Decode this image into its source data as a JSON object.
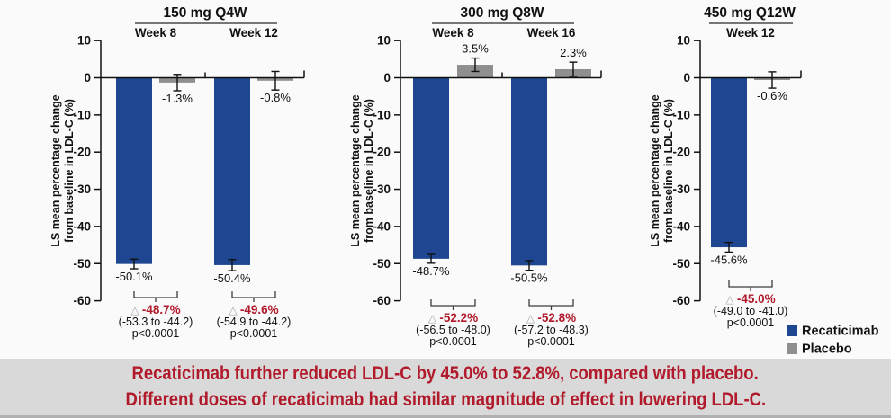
{
  "ylabel_lines": [
    "LS mean percentage change",
    "from baseline in LDL-C (%)"
  ],
  "chart_data": [
    {
      "type": "bar",
      "title": "150 mg Q4W",
      "ylabel": "LS mean percentage change from baseline in LDL-C (%)",
      "ylim": [
        -60,
        10
      ],
      "yticks": [
        10,
        0,
        -10,
        -20,
        -30,
        -40,
        -50,
        -60
      ],
      "series_names": [
        "Recaticimab",
        "Placebo"
      ],
      "groups": [
        {
          "label": "Week 8",
          "recaticimab": {
            "value": -50.1,
            "error": 1.3,
            "display": "-50.1%"
          },
          "placebo": {
            "value": -1.3,
            "error": 2.2,
            "display": "-1.3%"
          },
          "difference": {
            "display": "-48.7%",
            "ci": "(-53.3 to -44.2)",
            "p": "p<0.0001"
          }
        },
        {
          "label": "Week 12",
          "recaticimab": {
            "value": -50.4,
            "error": 1.5,
            "display": "-50.4%"
          },
          "placebo": {
            "value": -0.8,
            "error": 2.5,
            "display": "-0.8%"
          },
          "difference": {
            "display": "-49.6%",
            "ci": "(-54.9 to -44.2)",
            "p": "p<0.0001"
          }
        }
      ]
    },
    {
      "type": "bar",
      "title": "300 mg Q8W",
      "ylabel": "LS mean percentage change from baseline in LDL-C (%)",
      "ylim": [
        -60,
        10
      ],
      "yticks": [
        10,
        0,
        -10,
        -20,
        -30,
        -40,
        -50,
        -60
      ],
      "series_names": [
        "Recaticimab",
        "Placebo"
      ],
      "groups": [
        {
          "label": "Week 8",
          "recaticimab": {
            "value": -48.7,
            "error": 1.2,
            "display": "-48.7%"
          },
          "placebo": {
            "value": 3.5,
            "error": 1.8,
            "display": "3.5%"
          },
          "difference": {
            "display": "-52.2%",
            "ci": "(-56.5 to -48.0)",
            "p": "p<0.0001"
          }
        },
        {
          "label": "Week 16",
          "recaticimab": {
            "value": -50.5,
            "error": 1.3,
            "display": "-50.5%"
          },
          "placebo": {
            "value": 2.3,
            "error": 1.9,
            "display": "2.3%"
          },
          "difference": {
            "display": "-52.8%",
            "ci": "(-57.2 to -48.3)",
            "p": "p<0.0001"
          }
        }
      ]
    },
    {
      "type": "bar",
      "title": "450 mg Q12W",
      "ylabel": "LS mean percentage change from baseline in LDL-C (%)",
      "ylim": [
        -60,
        10
      ],
      "yticks": [
        10,
        0,
        -10,
        -20,
        -30,
        -40,
        -50,
        -60
      ],
      "series_names": [
        "Recaticimab",
        "Placebo"
      ],
      "groups": [
        {
          "label": "Week 12",
          "recaticimab": {
            "value": -45.6,
            "error": 1.3,
            "display": "-45.6%"
          },
          "placebo": {
            "value": -0.6,
            "error": 2.2,
            "display": "-0.6%"
          },
          "difference": {
            "display": "-45.0%",
            "ci": "(-49.0 to -41.0)",
            "p": "p<0.0001"
          }
        }
      ]
    }
  ],
  "legend": {
    "position": "bottom-right",
    "items": [
      {
        "label": "Recaticimab",
        "color": "#1e4691"
      },
      {
        "label": "Placebo",
        "color": "#8f8f8f"
      }
    ]
  },
  "caption": {
    "line1": "Recaticimab further reduced LDL-C by 45.0% to 52.8%, compared with placebo.",
    "line2": "Different doses of recaticimab had similar magnitude of effect in lowering LDL-C."
  },
  "icons": {
    "difference_triangle": "△"
  },
  "colors": {
    "recaticimab_blue": "#1e4691",
    "placebo_gray": "#8f8f8f",
    "difference_red": "#b01a2b",
    "triangle_gray": "#a8a8a8",
    "caption_red": "#b01a2b",
    "caption_bg": "#d9d9d9",
    "footer_strip": "#b0b0b0",
    "axis_black": "#111111"
  }
}
